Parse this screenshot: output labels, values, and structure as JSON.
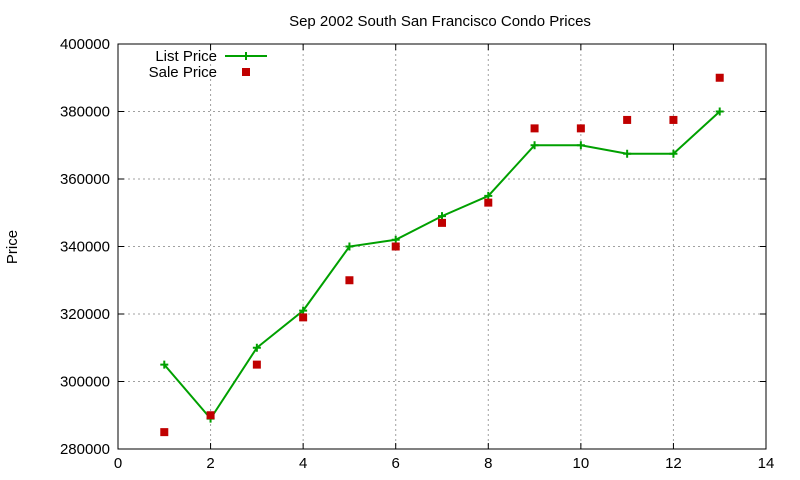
{
  "chart_data": {
    "type": "line",
    "title": "Sep 2002 South San Francisco Condo Prices",
    "xlabel": "",
    "ylabel": "Price",
    "xlim": [
      0,
      14
    ],
    "ylim": [
      280000,
      400000
    ],
    "xticks": [
      0,
      2,
      4,
      6,
      8,
      10,
      12,
      14
    ],
    "yticks": [
      280000,
      300000,
      320000,
      340000,
      360000,
      380000,
      400000
    ],
    "xtick_labels": [
      "0",
      "2",
      "4",
      "6",
      "8",
      "10",
      "12",
      "14"
    ],
    "ytick_labels": [
      "280000",
      "300000",
      "320000",
      "340000",
      "360000",
      "380000",
      "400000"
    ],
    "grid": true,
    "legend_position": "top-left",
    "series": [
      {
        "name": "List Price",
        "style": "line-with-plus-markers",
        "color": "#00a000",
        "x": [
          1,
          2,
          3,
          4,
          5,
          6,
          7,
          8,
          9,
          10,
          11,
          12,
          13
        ],
        "y": [
          305000,
          289000,
          310000,
          321000,
          340000,
          342000,
          349000,
          355000,
          370000,
          370000,
          367500,
          367500,
          380000
        ]
      },
      {
        "name": "Sale Price",
        "style": "square-points",
        "color": "#c00000",
        "x": [
          1,
          2,
          3,
          4,
          5,
          6,
          7,
          8,
          9,
          10,
          11,
          12,
          13
        ],
        "y": [
          285000,
          290000,
          305000,
          319000,
          330000,
          340000,
          347000,
          353000,
          375000,
          375000,
          377500,
          377500,
          390000
        ]
      }
    ]
  }
}
